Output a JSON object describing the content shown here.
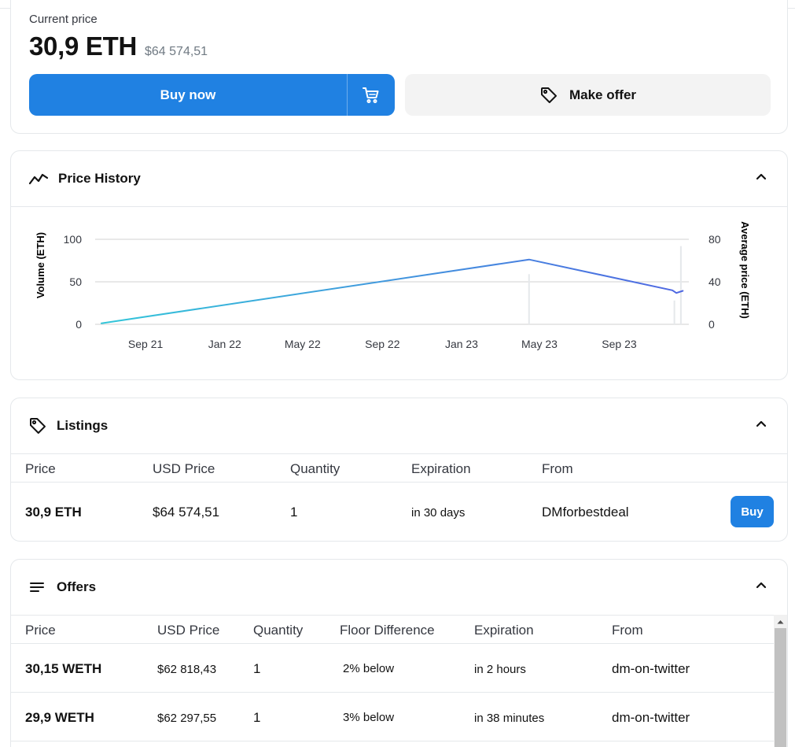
{
  "price_card": {
    "label": "Current price",
    "eth_price": "30,9 ETH",
    "usd_price": "$64 574,51",
    "buy_now_label": "Buy now",
    "make_offer_label": "Make offer"
  },
  "price_history": {
    "title": "Price History"
  },
  "chart_data": {
    "type": "line",
    "title": "",
    "x_ticks": [
      "Sep 21",
      "Jan 22",
      "May 22",
      "Sep 22",
      "Jan 23",
      "May 23",
      "Sep 23"
    ],
    "y_left": {
      "label": "Volume (ETH)",
      "ticks": [
        "100",
        "50",
        "0"
      ],
      "range": [
        0,
        100
      ]
    },
    "y_right": {
      "label": "Average price (ETH)",
      "ticks": [
        "80",
        "40",
        "0"
      ],
      "range": [
        0,
        80
      ]
    },
    "series": [
      {
        "type": "line",
        "axis": "right",
        "points": [
          {
            "x": "2021-06-25",
            "y": 1
          },
          {
            "x": "2023-04-15",
            "y": 61
          },
          {
            "x": "2023-11-22",
            "y": 32
          },
          {
            "x": "2023-11-28",
            "y": 29.5
          },
          {
            "x": "2023-12-08",
            "y": 31.5
          }
        ]
      },
      {
        "type": "bar",
        "axis": "left",
        "points": [
          {
            "x": "2023-04-15",
            "y": 59
          },
          {
            "x": "2023-11-25",
            "y": 28
          },
          {
            "x": "2023-12-05",
            "y": 92
          }
        ]
      }
    ],
    "grid": true,
    "colors": {
      "line_start": "#33c6d9",
      "line_end": "#4f67e2",
      "bars": "#e5e8eb",
      "grid": "#d0d0d0"
    }
  },
  "listings": {
    "title": "Listings",
    "columns": [
      "Price",
      "USD Price",
      "Quantity",
      "Expiration",
      "From"
    ],
    "rows": [
      {
        "price": "30,9 ETH",
        "usd": "$64 574,51",
        "quantity": "1",
        "expiration": "in 30 days",
        "from": "DMforbestdeal",
        "action": "Buy"
      }
    ]
  },
  "offers": {
    "title": "Offers",
    "columns": [
      "Price",
      "USD Price",
      "Quantity",
      "Floor Difference",
      "Expiration",
      "From"
    ],
    "rows": [
      {
        "price": "30,15 WETH",
        "usd": "$62 818,43",
        "quantity": "1",
        "floor_diff": "2% below",
        "expiration": "in 2 hours",
        "from": "dm-on-twitter"
      },
      {
        "price": "29,9 WETH",
        "usd": "$62 297,55",
        "quantity": "1",
        "floor_diff": "3% below",
        "expiration": "in 38 minutes",
        "from": "dm-on-twitter"
      }
    ]
  },
  "icons": {
    "cart": "cart-icon",
    "tag": "tag-icon",
    "trend": "trend-line-icon",
    "list": "list-icon",
    "chevron": "chevron-up-icon"
  },
  "colors": {
    "accent": "#2081e2",
    "link": "#2081e2",
    "border": "#e5e8eb"
  }
}
